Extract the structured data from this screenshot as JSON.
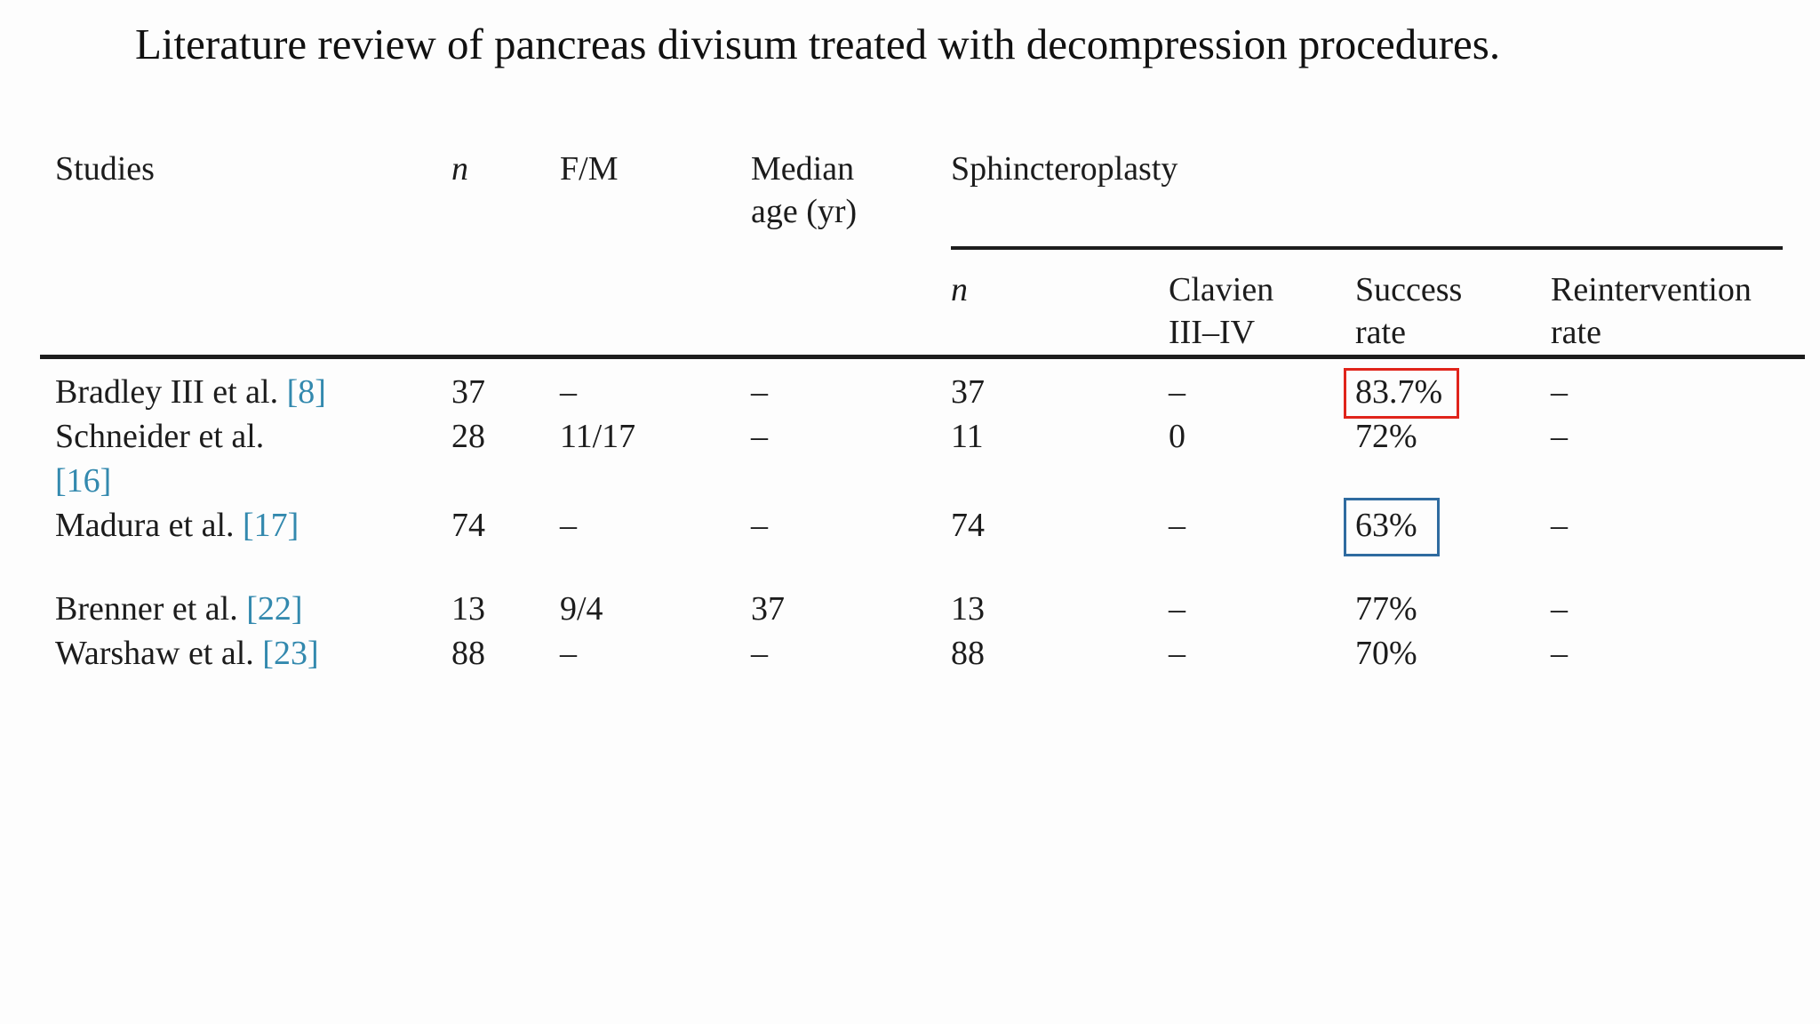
{
  "caption": "Literature review of pancreas divisum treated with decompression procedures.",
  "colors": {
    "background": "#fdfdfd",
    "text": "#1c1c1c",
    "rule": "#1d1d1d",
    "citation": "#3389ae",
    "highlight_red": "#e0241b",
    "highlight_blue": "#2f6ba0"
  },
  "header": {
    "studies": "Studies",
    "n": "n",
    "fm": "F/M",
    "median_line1": "Median",
    "median_line2": "age (yr)",
    "group": "Sphincteroplasty",
    "sub_n": "n",
    "clavien_line1": "Clavien",
    "clavien_line2": "III–IV",
    "success_line1": "Success",
    "success_line2": "rate",
    "reintervention_line1": "Reintervention",
    "reintervention_line2": "rate"
  },
  "rows": [
    {
      "study": "Bradley III et al.",
      "ref": "[8]",
      "n": "37",
      "fm": "–",
      "median_age": "–",
      "sp_n": "37",
      "clavien": "–",
      "success_rate": "83.7%",
      "reintervention": "–",
      "highlight": "red"
    },
    {
      "study": "Schneider et al.",
      "ref": "[16]",
      "n": "28",
      "fm": "11/17",
      "median_age": "–",
      "sp_n": "11",
      "clavien": "0",
      "success_rate": "72%",
      "reintervention": "–",
      "highlight": "none"
    },
    {
      "study": "Madura et al.",
      "ref": "[17]",
      "n": "74",
      "fm": "–",
      "median_age": "–",
      "sp_n": "74",
      "clavien": "–",
      "success_rate": "63%",
      "reintervention": "–",
      "highlight": "blue"
    },
    {
      "study": "Brenner et al.",
      "ref": "[22]",
      "n": "13",
      "fm": "9/4",
      "median_age": "37",
      "sp_n": "13",
      "clavien": "–",
      "success_rate": "77%",
      "reintervention": "–",
      "highlight": "none"
    },
    {
      "study": "Warshaw et al.",
      "ref": "[23]",
      "n": "88",
      "fm": "–",
      "median_age": "–",
      "sp_n": "88",
      "clavien": "–",
      "success_rate": "70%",
      "reintervention": "–",
      "highlight": "none"
    }
  ]
}
